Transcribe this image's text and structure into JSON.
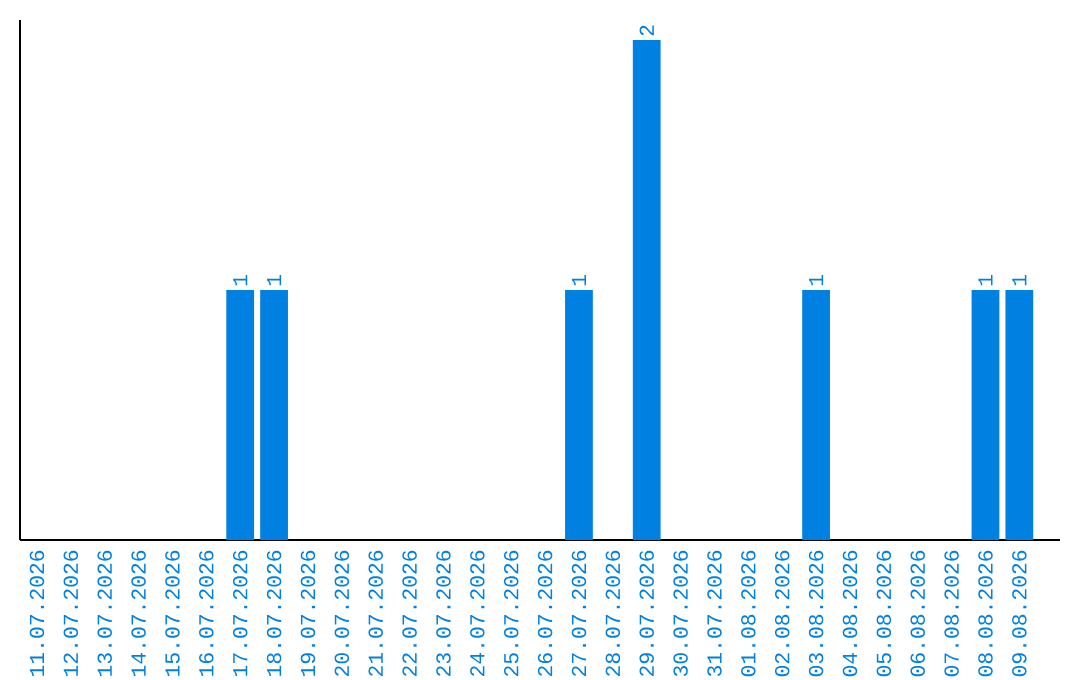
{
  "chart_data": {
    "type": "bar",
    "categories": [
      "11.07.2026",
      "12.07.2026",
      "13.07.2026",
      "14.07.2026",
      "15.07.2026",
      "16.07.2026",
      "17.07.2026",
      "18.07.2026",
      "19.07.2026",
      "20.07.2026",
      "21.07.2026",
      "22.07.2026",
      "23.07.2026",
      "24.07.2026",
      "25.07.2026",
      "26.07.2026",
      "27.07.2026",
      "28.07.2026",
      "29.07.2026",
      "30.07.2026",
      "31.07.2026",
      "01.08.2026",
      "02.08.2026",
      "03.08.2026",
      "04.08.2026",
      "05.08.2026",
      "06.08.2026",
      "07.08.2026",
      "08.08.2026",
      "09.08.2026"
    ],
    "values": [
      0,
      0,
      0,
      0,
      0,
      0,
      1,
      1,
      0,
      0,
      0,
      0,
      0,
      0,
      0,
      0,
      1,
      0,
      2,
      0,
      0,
      0,
      0,
      1,
      0,
      0,
      0,
      0,
      1,
      1
    ],
    "value_labels": [
      null,
      null,
      null,
      null,
      null,
      null,
      "1",
      "1",
      null,
      null,
      null,
      null,
      null,
      null,
      null,
      null,
      "1",
      null,
      "2",
      null,
      null,
      null,
      null,
      "1",
      null,
      null,
      null,
      null,
      "1",
      "1"
    ],
    "color": "#0080e0",
    "tick_labels": "x"
  }
}
